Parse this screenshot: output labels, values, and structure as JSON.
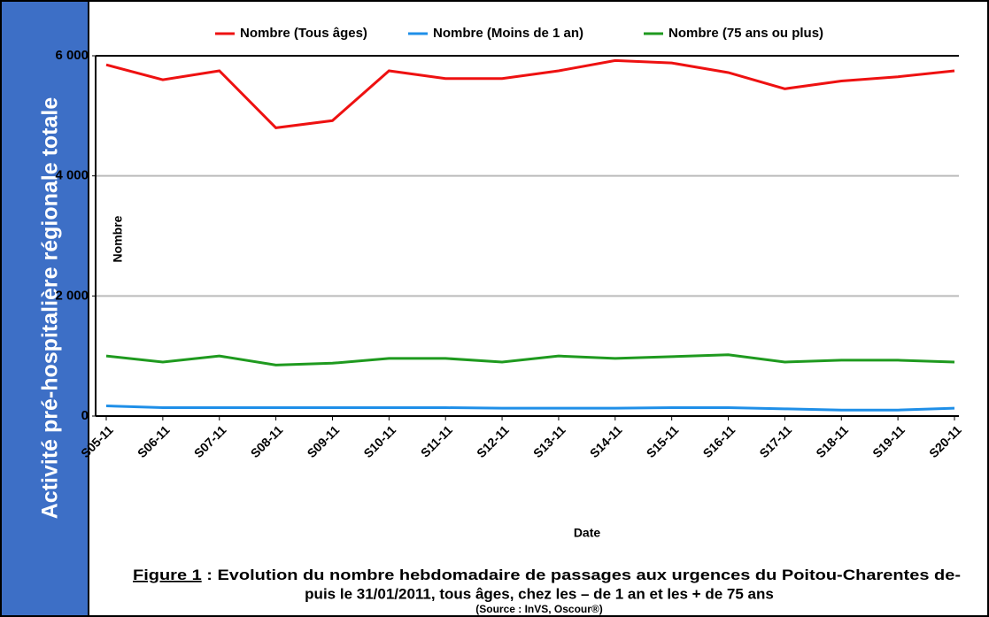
{
  "side_title": "Activité pré-hospitalière régionale totale",
  "chart_data": {
    "type": "line",
    "categories": [
      "S05-11",
      "S06-11",
      "S07-11",
      "S08-11",
      "S09-11",
      "S10-11",
      "S11-11",
      "S12-11",
      "S13-11",
      "S14-11",
      "S15-11",
      "S16-11",
      "S17-11",
      "S18-11",
      "S19-11",
      "S20-11"
    ],
    "series": [
      {
        "name": "Nombre (Tous âges)",
        "color": "#ee1111",
        "values": [
          5850,
          5600,
          5750,
          4800,
          4920,
          5750,
          5620,
          5620,
          5750,
          5920,
          5880,
          5720,
          5450,
          5580,
          5650,
          5750
        ]
      },
      {
        "name": "Nombre (Moins de 1 an)",
        "color": "#1f8fe8",
        "values": [
          170,
          140,
          140,
          140,
          140,
          140,
          140,
          130,
          130,
          130,
          140,
          140,
          120,
          100,
          100,
          130
        ]
      },
      {
        "name": "Nombre (75 ans ou plus)",
        "color": "#1f9a1f",
        "values": [
          1000,
          900,
          1000,
          850,
          880,
          960,
          960,
          900,
          1000,
          960,
          990,
          1020,
          900,
          930,
          930,
          900
        ]
      }
    ],
    "ylim": [
      0,
      6000
    ],
    "yticks": [
      0,
      {
        "value": 2000,
        "label": "2 000"
      },
      {
        "value": 4000,
        "label": "4 000"
      },
      {
        "value": 6000,
        "label": "6 000"
      }
    ],
    "y_label": "Nombre",
    "x_label": "Date",
    "grid": true,
    "legend": "top"
  },
  "caption": {
    "figure": "Figure 1",
    "line1": " : Evolution du nombre hebdomadaire de passages aux urgences du Poitou-Charentes de-",
    "line2": "puis le 31/01/2011, tous âges, chez les – de 1 an et les  + de 75 ans",
    "source": "(Source : InVS, Oscour®)"
  }
}
